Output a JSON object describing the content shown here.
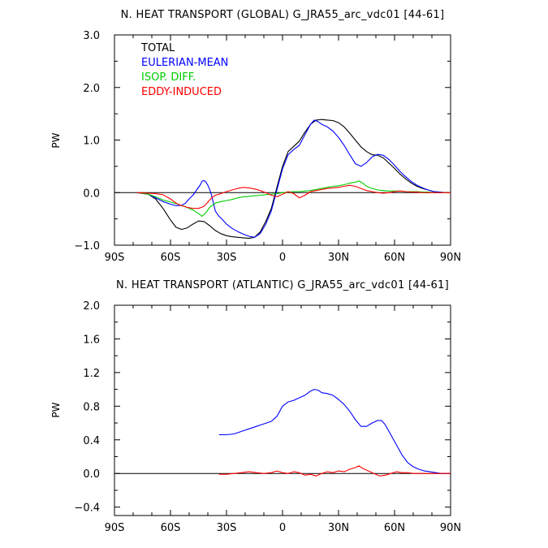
{
  "chart_data": [
    {
      "type": "line",
      "title": "N. HEAT TRANSPORT (GLOBAL) G_JRA55_arc_vdc01 [44-61]",
      "xlabel": "",
      "ylabel": "PW",
      "xlim": [
        -90,
        90
      ],
      "ylim": [
        -1.0,
        3.0
      ],
      "x_ticks": [
        -90,
        -60,
        -30,
        0,
        30,
        60,
        90
      ],
      "x_tick_labels": [
        "90S",
        "60S",
        "30S",
        "0",
        "30N",
        "60N",
        "90N"
      ],
      "y_ticks": [
        -1.0,
        0.0,
        1.0,
        2.0,
        3.0
      ],
      "y_tick_labels": [
        "−1.0",
        "0.0",
        "1.0",
        "2.0",
        "3.0"
      ],
      "zero_line": true,
      "grid": false,
      "legend_position": "top-left",
      "series": [
        {
          "name": "TOTAL",
          "color": "#000000",
          "x": [
            -78,
            -72,
            -68,
            -64,
            -60,
            -57,
            -54,
            -51,
            -48,
            -45,
            -42,
            -39,
            -36,
            -33,
            -30,
            -27,
            -24,
            -21,
            -18,
            -15,
            -12,
            -9,
            -6,
            -3,
            0,
            3,
            6,
            9,
            12,
            15,
            18,
            21,
            24,
            27,
            30,
            33,
            36,
            39,
            42,
            45,
            48,
            51,
            54,
            57,
            60,
            63,
            66,
            69,
            72,
            75,
            78,
            81,
            84,
            87,
            90
          ],
          "y": [
            0.0,
            -0.03,
            -0.12,
            -0.3,
            -0.52,
            -0.66,
            -0.7,
            -0.67,
            -0.6,
            -0.54,
            -0.55,
            -0.63,
            -0.72,
            -0.78,
            -0.82,
            -0.84,
            -0.85,
            -0.86,
            -0.87,
            -0.85,
            -0.75,
            -0.55,
            -0.3,
            0.1,
            0.5,
            0.78,
            0.88,
            0.98,
            1.15,
            1.3,
            1.38,
            1.39,
            1.38,
            1.37,
            1.33,
            1.25,
            1.13,
            1.0,
            0.87,
            0.78,
            0.72,
            0.71,
            0.66,
            0.56,
            0.46,
            0.35,
            0.26,
            0.18,
            0.12,
            0.08,
            0.05,
            0.02,
            0.01,
            0.0,
            0.0
          ]
        },
        {
          "name": "EULERIAN-MEAN",
          "color": "#0000ff",
          "x": [
            -78,
            -72,
            -68,
            -64,
            -60,
            -57,
            -54,
            -52,
            -50,
            -48,
            -46,
            -44,
            -43,
            -42,
            -41,
            -40,
            -39,
            -38,
            -37,
            -36,
            -34,
            -32,
            -30,
            -27,
            -24,
            -21,
            -18,
            -15,
            -12,
            -9,
            -6,
            -3,
            0,
            3,
            6,
            9,
            12,
            15,
            17,
            19,
            21,
            24,
            27,
            30,
            33,
            36,
            39,
            42,
            45,
            48,
            51,
            54,
            57,
            60,
            63,
            66,
            69,
            72,
            75,
            78,
            81,
            84,
            87,
            90
          ],
          "y": [
            0.0,
            -0.03,
            -0.1,
            -0.17,
            -0.22,
            -0.25,
            -0.24,
            -0.2,
            -0.12,
            -0.05,
            0.05,
            0.15,
            0.22,
            0.23,
            0.2,
            0.14,
            0.06,
            -0.05,
            -0.2,
            -0.35,
            -0.45,
            -0.52,
            -0.6,
            -0.68,
            -0.74,
            -0.79,
            -0.83,
            -0.85,
            -0.78,
            -0.6,
            -0.35,
            0.05,
            0.45,
            0.72,
            0.82,
            0.9,
            1.1,
            1.3,
            1.38,
            1.35,
            1.3,
            1.25,
            1.17,
            1.05,
            0.9,
            0.72,
            0.55,
            0.5,
            0.57,
            0.68,
            0.73,
            0.71,
            0.63,
            0.52,
            0.4,
            0.3,
            0.21,
            0.14,
            0.09,
            0.05,
            0.02,
            0.01,
            0.0,
            0.0
          ]
        },
        {
          "name": "ISOP. DIFF.",
          "color": "#00cc00",
          "x": [
            -78,
            -72,
            -68,
            -64,
            -60,
            -56,
            -52,
            -48,
            -45,
            -43,
            -41,
            -39,
            -36,
            -33,
            -30,
            -27,
            -24,
            -21,
            -18,
            -15,
            -12,
            -9,
            -6,
            -3,
            0,
            3,
            6,
            9,
            12,
            15,
            18,
            21,
            24,
            27,
            30,
            33,
            36,
            39,
            41,
            43,
            45,
            48,
            51,
            54,
            57,
            60,
            63,
            66,
            69,
            72,
            75,
            78,
            81,
            84,
            87,
            90
          ],
          "y": [
            0.0,
            -0.03,
            -0.08,
            -0.14,
            -0.18,
            -0.22,
            -0.27,
            -0.33,
            -0.4,
            -0.45,
            -0.38,
            -0.28,
            -0.2,
            -0.17,
            -0.15,
            -0.13,
            -0.1,
            -0.08,
            -0.07,
            -0.06,
            -0.05,
            -0.04,
            -0.03,
            -0.02,
            0.0,
            0.01,
            0.02,
            0.02,
            0.03,
            0.04,
            0.06,
            0.08,
            0.1,
            0.12,
            0.13,
            0.15,
            0.18,
            0.2,
            0.22,
            0.18,
            0.12,
            0.08,
            0.05,
            0.04,
            0.03,
            0.03,
            0.03,
            0.02,
            0.02,
            0.02,
            0.01,
            0.01,
            0.0,
            0.0,
            0.0,
            0.0
          ]
        },
        {
          "name": "EDDY-INDUCED",
          "color": "#ff0000",
          "x": [
            -78,
            -72,
            -68,
            -64,
            -60,
            -57,
            -54,
            -51,
            -48,
            -45,
            -42,
            -40,
            -38,
            -36,
            -33,
            -30,
            -27,
            -24,
            -21,
            -18,
            -15,
            -12,
            -9,
            -6,
            -3,
            0,
            3,
            6,
            9,
            12,
            15,
            18,
            21,
            24,
            27,
            30,
            33,
            36,
            39,
            42,
            45,
            48,
            51,
            54,
            57,
            60,
            63,
            66,
            69,
            72,
            75,
            78,
            81,
            84,
            87,
            90
          ],
          "y": [
            0.0,
            -0.01,
            -0.02,
            -0.04,
            -0.12,
            -0.2,
            -0.25,
            -0.28,
            -0.3,
            -0.3,
            -0.26,
            -0.18,
            -0.1,
            -0.05,
            -0.02,
            0.02,
            0.05,
            0.08,
            0.1,
            0.09,
            0.07,
            0.04,
            0.0,
            -0.05,
            -0.08,
            -0.03,
            0.02,
            -0.02,
            -0.1,
            -0.05,
            0.02,
            0.04,
            0.06,
            0.08,
            0.09,
            0.1,
            0.12,
            0.14,
            0.12,
            0.08,
            0.04,
            0.02,
            0.0,
            -0.01,
            0.0,
            0.02,
            0.03,
            0.02,
            0.01,
            0.01,
            0.0,
            0.0,
            0.0,
            0.0,
            0.0,
            0.0
          ]
        }
      ]
    },
    {
      "type": "line",
      "title": "N. HEAT TRANSPORT (ATLANTIC) G_JRA55_arc_vdc01 [44-61]",
      "xlabel": "",
      "ylabel": "PW",
      "xlim": [
        -90,
        90
      ],
      "ylim": [
        -0.5,
        2.0
      ],
      "x_ticks": [
        -90,
        -60,
        -30,
        0,
        30,
        60,
        90
      ],
      "x_tick_labels": [
        "90S",
        "60S",
        "30S",
        "0",
        "30N",
        "60N",
        "90N"
      ],
      "y_ticks": [
        -0.4,
        0.0,
        0.4,
        0.8,
        1.2,
        1.6,
        2.0
      ],
      "y_tick_labels": [
        "−0.4",
        "0.0",
        "0.4",
        "0.8",
        "1.2",
        "1.6",
        "2.0"
      ],
      "zero_line": true,
      "grid": false,
      "series": [
        {
          "name": "EULERIAN-MEAN",
          "color": "#0000ff",
          "x": [
            -34,
            -30,
            -26,
            -22,
            -18,
            -14,
            -10,
            -6,
            -3,
            0,
            3,
            6,
            9,
            12,
            15,
            17,
            19,
            21,
            24,
            27,
            30,
            33,
            36,
            39,
            42,
            45,
            48,
            51,
            53,
            55,
            58,
            61,
            64,
            67,
            70,
            73,
            76,
            79,
            82,
            85,
            88,
            90
          ],
          "y": [
            0.46,
            0.46,
            0.47,
            0.5,
            0.53,
            0.56,
            0.59,
            0.62,
            0.68,
            0.8,
            0.85,
            0.87,
            0.9,
            0.93,
            0.98,
            1.0,
            0.99,
            0.96,
            0.95,
            0.93,
            0.88,
            0.82,
            0.74,
            0.64,
            0.56,
            0.56,
            0.6,
            0.63,
            0.63,
            0.58,
            0.46,
            0.34,
            0.22,
            0.13,
            0.08,
            0.05,
            0.03,
            0.02,
            0.01,
            0.0,
            0.0,
            0.0
          ]
        },
        {
          "name": "EDDY-INDUCED",
          "color": "#ff0000",
          "x": [
            -34,
            -30,
            -26,
            -22,
            -18,
            -14,
            -10,
            -6,
            -3,
            0,
            3,
            6,
            9,
            12,
            15,
            18,
            21,
            24,
            27,
            30,
            33,
            36,
            39,
            41,
            43,
            46,
            49,
            52,
            55,
            58,
            61,
            64,
            67,
            70,
            73,
            76,
            80,
            84,
            88,
            90
          ],
          "y": [
            -0.01,
            -0.01,
            0.0,
            0.01,
            0.02,
            0.01,
            0.0,
            0.01,
            0.03,
            0.01,
            0.0,
            0.02,
            0.01,
            -0.02,
            -0.01,
            -0.03,
            0.0,
            0.02,
            0.01,
            0.03,
            0.02,
            0.05,
            0.07,
            0.09,
            0.06,
            0.03,
            0.0,
            -0.03,
            -0.02,
            0.0,
            0.02,
            0.01,
            0.01,
            0.0,
            0.0,
            0.0,
            0.0,
            0.0,
            0.0,
            0.0
          ]
        }
      ]
    }
  ]
}
